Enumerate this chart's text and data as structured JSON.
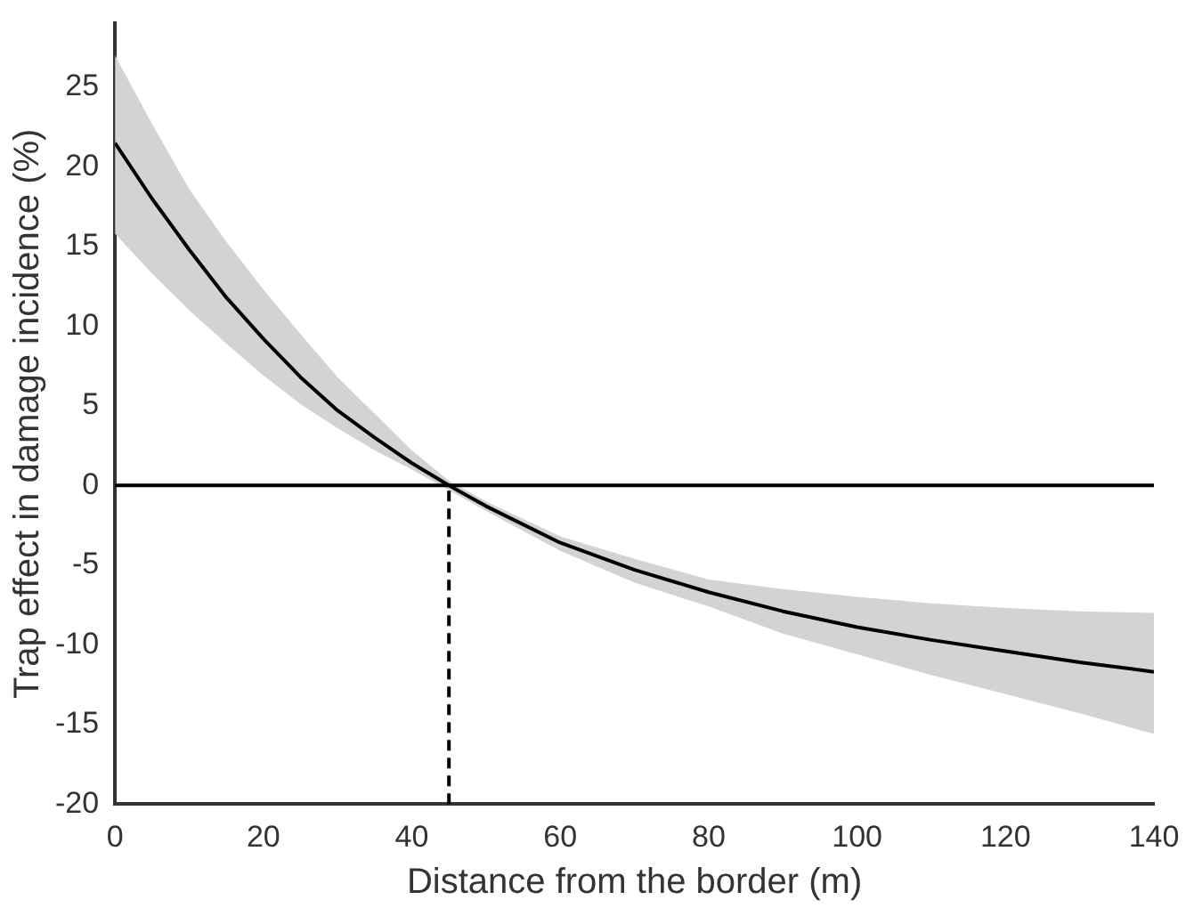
{
  "chart_data": {
    "type": "line",
    "xlabel": "Distance from the border (m)",
    "ylabel": "Trap effect in damage incidence (%)",
    "x": [
      0,
      5,
      10,
      15,
      20,
      25,
      30,
      35,
      40,
      45,
      50,
      60,
      70,
      80,
      90,
      100,
      110,
      120,
      130,
      140
    ],
    "series": [
      {
        "color": "#000000",
        "values": [
          21.5,
          18.0,
          14.8,
          11.8,
          9.2,
          6.8,
          4.7,
          3.0,
          1.4,
          0,
          -1.3,
          -3.6,
          -5.3,
          -6.7,
          -7.9,
          -8.9,
          -9.7,
          -10.4,
          -11.1,
          -11.7
        ],
        "lower": [
          15.8,
          13.3,
          11.0,
          8.9,
          6.9,
          5.1,
          3.6,
          2.2,
          1.0,
          -0.3,
          -1.6,
          -4.1,
          -6.1,
          -7.6,
          -9.3,
          -10.6,
          -11.9,
          -13.1,
          -14.3,
          -15.6
        ],
        "upper": [
          27.0,
          22.7,
          18.6,
          15.3,
          12.3,
          9.5,
          6.8,
          4.5,
          2.2,
          0.3,
          -1.0,
          -3.2,
          -4.6,
          -5.9,
          -6.5,
          -7.0,
          -7.4,
          -7.7,
          -7.9,
          -8.0
        ]
      }
    ],
    "xlim": [
      0,
      140
    ],
    "xticks": [
      0,
      20,
      40,
      60,
      80,
      100,
      120,
      140
    ],
    "ylim": [
      -20,
      29
    ],
    "yticks": [
      -20,
      -15,
      -10,
      -5,
      0,
      5,
      10,
      15,
      20,
      25
    ],
    "ref_lines": [
      {
        "axis": "y",
        "value": 0,
        "color": "#000000",
        "line_style": "solid"
      },
      {
        "axis": "x",
        "value": 45,
        "color": "#000000",
        "line_style": "dashed"
      }
    ]
  }
}
